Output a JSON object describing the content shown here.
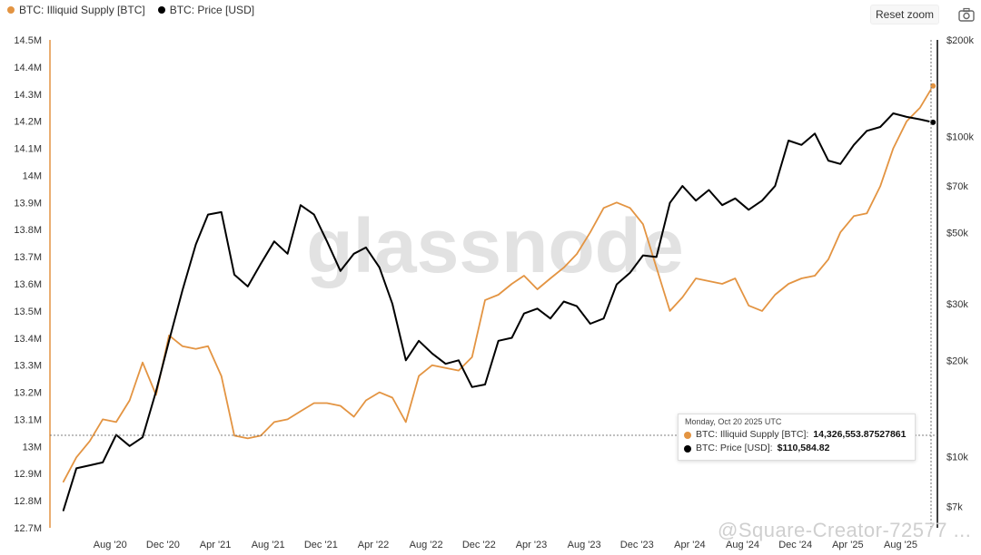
{
  "legend": [
    {
      "label": "BTC: Illiquid Supply [BTC]",
      "color": "#e39442"
    },
    {
      "label": "BTC: Price [USD]",
      "color": "#000000"
    }
  ],
  "toolbar": {
    "reset_zoom_label": "Reset zoom",
    "camera_icon": "camera-icon"
  },
  "watermark": {
    "logo": "glassnode",
    "overlay_text": "@Square-Creator-72577 ..."
  },
  "tooltip": {
    "date": "Monday, Oct 20 2025 UTC",
    "rows": [
      {
        "label": "BTC: Illiquid Supply [BTC]:",
        "value": "14,326,553.87527861",
        "color": "#e39442"
      },
      {
        "label": "BTC: Price [USD]:",
        "value": "$110,584.82",
        "color": "#000000"
      }
    ]
  },
  "chart_data": {
    "type": "line",
    "x_axis": {
      "ticks": [
        "Aug '20",
        "Dec '20",
        "Apr '21",
        "Aug '21",
        "Dec '21",
        "Apr '22",
        "Aug '22",
        "Dec '22",
        "Apr '23",
        "Aug '23",
        "Dec '23",
        "Apr '24",
        "Aug '24",
        "Dec '24",
        "Apr '25",
        "Aug '25"
      ]
    },
    "y_left": {
      "ticks": [
        "12.7M",
        "12.8M",
        "12.9M",
        "13M",
        "13.1M",
        "13.2M",
        "13.3M",
        "13.4M",
        "13.5M",
        "13.6M",
        "13.7M",
        "13.8M",
        "13.9M",
        "14M",
        "14.1M",
        "14.2M",
        "14.3M",
        "14.4M",
        "14.5M"
      ],
      "range": [
        12700000,
        14500000
      ]
    },
    "y_right": {
      "scale": "log",
      "ticks": [
        "$7k",
        "$10k",
        "$20k",
        "$30k",
        "$50k",
        "$70k",
        "$100k",
        "$200k"
      ],
      "range": [
        6000,
        200000
      ]
    },
    "series": [
      {
        "name": "BTC: Illiquid Supply [BTC]",
        "axis": "left",
        "color": "#e39442",
        "x": [
          "2020-04",
          "2020-05",
          "2020-06",
          "2020-07",
          "2020-08",
          "2020-09",
          "2020-10",
          "2020-11",
          "2020-12",
          "2021-01",
          "2021-02",
          "2021-03",
          "2021-04",
          "2021-05",
          "2021-06",
          "2021-07",
          "2021-08",
          "2021-09",
          "2021-10",
          "2021-11",
          "2021-12",
          "2022-01",
          "2022-02",
          "2022-03",
          "2022-04",
          "2022-05",
          "2022-06",
          "2022-07",
          "2022-08",
          "2022-09",
          "2022-10",
          "2022-11",
          "2022-12",
          "2023-01",
          "2023-02",
          "2023-03",
          "2023-04",
          "2023-05",
          "2023-06",
          "2023-07",
          "2023-08",
          "2023-09",
          "2023-10",
          "2023-11",
          "2023-12",
          "2024-01",
          "2024-02",
          "2024-03",
          "2024-04",
          "2024-05",
          "2024-06",
          "2024-07",
          "2024-08",
          "2024-09",
          "2024-10",
          "2024-11",
          "2024-12",
          "2025-01",
          "2025-02",
          "2025-03",
          "2025-04",
          "2025-05",
          "2025-06",
          "2025-07",
          "2025-08",
          "2025-09",
          "2025-10"
        ],
        "y": [
          12870000,
          12960000,
          13020000,
          13100000,
          13090000,
          13170000,
          13310000,
          13190000,
          13410000,
          13370000,
          13360000,
          13370000,
          13260000,
          13040000,
          13030000,
          13040000,
          13090000,
          13100000,
          13130000,
          13160000,
          13160000,
          13150000,
          13110000,
          13170000,
          13200000,
          13180000,
          13090000,
          13260000,
          13300000,
          13290000,
          13280000,
          13330000,
          13540000,
          13560000,
          13600000,
          13630000,
          13580000,
          13620000,
          13660000,
          13710000,
          13790000,
          13880000,
          13900000,
          13880000,
          13820000,
          13660000,
          13500000,
          13550000,
          13620000,
          13610000,
          13600000,
          13620000,
          13520000,
          13500000,
          13560000,
          13600000,
          13620000,
          13630000,
          13690000,
          13790000,
          13850000,
          13860000,
          13960000,
          14100000,
          14200000,
          14250000,
          14330000
        ]
      },
      {
        "name": "BTC: Price [USD]",
        "axis": "right",
        "color": "#000000",
        "x": [
          "2020-04",
          "2020-05",
          "2020-06",
          "2020-07",
          "2020-08",
          "2020-09",
          "2020-10",
          "2020-11",
          "2020-12",
          "2021-01",
          "2021-02",
          "2021-03",
          "2021-04",
          "2021-05",
          "2021-06",
          "2021-07",
          "2021-08",
          "2021-09",
          "2021-10",
          "2021-11",
          "2021-12",
          "2022-01",
          "2022-02",
          "2022-03",
          "2022-04",
          "2022-05",
          "2022-06",
          "2022-07",
          "2022-08",
          "2022-09",
          "2022-10",
          "2022-11",
          "2022-12",
          "2023-01",
          "2023-02",
          "2023-03",
          "2023-04",
          "2023-05",
          "2023-06",
          "2023-07",
          "2023-08",
          "2023-09",
          "2023-10",
          "2023-11",
          "2023-12",
          "2024-01",
          "2024-02",
          "2024-03",
          "2024-04",
          "2024-05",
          "2024-06",
          "2024-07",
          "2024-08",
          "2024-09",
          "2024-10",
          "2024-11",
          "2024-12",
          "2025-01",
          "2025-02",
          "2025-03",
          "2025-04",
          "2025-05",
          "2025-06",
          "2025-07",
          "2025-08",
          "2025-09",
          "2025-10"
        ],
        "y": [
          6800,
          9200,
          9400,
          9600,
          11700,
          10800,
          11500,
          16000,
          23000,
          33000,
          46000,
          57000,
          58000,
          37000,
          34000,
          40000,
          47000,
          43000,
          61000,
          57000,
          47000,
          38000,
          43000,
          45000,
          39000,
          30000,
          20000,
          23000,
          21000,
          19500,
          20000,
          16500,
          16800,
          23000,
          23500,
          28000,
          29000,
          27000,
          30500,
          29500,
          26000,
          27000,
          34500,
          37500,
          42500,
          42000,
          62000,
          70000,
          63000,
          68000,
          61000,
          64000,
          59000,
          63000,
          70000,
          97000,
          94000,
          102000,
          84000,
          82000,
          94000,
          104000,
          107000,
          118000,
          115000,
          113000,
          110585
        ]
      }
    ]
  }
}
